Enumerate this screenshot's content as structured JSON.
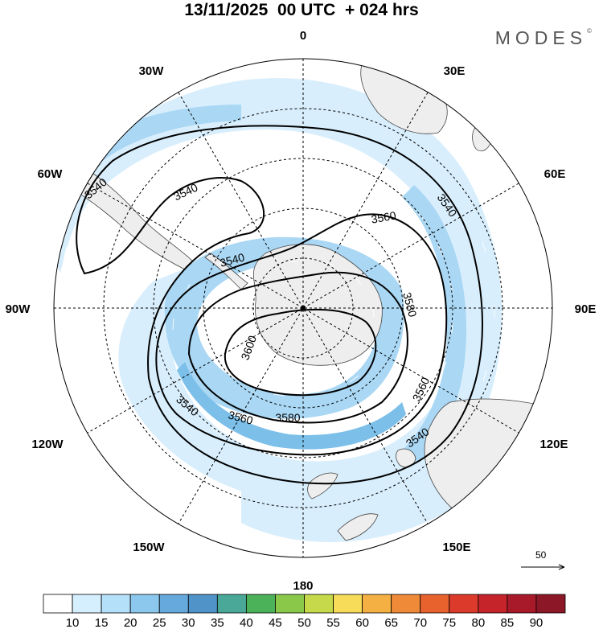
{
  "header": {
    "title": "13/11/2025  00 UTC  + 024 hrs",
    "brand": "MODES",
    "brand_mark": "©"
  },
  "map": {
    "projection": "south-polar-stereographic",
    "longitude_labels": [
      "0",
      "30E",
      "60E",
      "90E",
      "120E",
      "150E",
      "180",
      "150W",
      "120W",
      "90W",
      "60W",
      "30W"
    ],
    "contour_labels": [
      "3540",
      "3540",
      "3540",
      "3540",
      "3540",
      "3560",
      "3560",
      "3560",
      "3580",
      "3580",
      "3600"
    ],
    "wind_reference": {
      "value": "50",
      "arrow": "right-arrow"
    }
  },
  "colorbar": {
    "ticks": [
      "10",
      "15",
      "20",
      "25",
      "30",
      "35",
      "40",
      "45",
      "50",
      "55",
      "60",
      "65",
      "70",
      "75",
      "80",
      "85",
      "90"
    ],
    "colors": [
      "#ffffff",
      "#d6efff",
      "#b5e0f9",
      "#8cc8ee",
      "#66a9dc",
      "#4f93c8",
      "#4aa899",
      "#4cb25a",
      "#8ac84a",
      "#c5d94a",
      "#f6dc59",
      "#f4b043",
      "#ef8a38",
      "#e8622e",
      "#dc3b2c",
      "#c4242a",
      "#a8192a",
      "#8c1727"
    ]
  },
  "colors": {
    "land": "#eeeeee",
    "wind_light": "#d8eefc",
    "wind_mid": "#a9d7f4",
    "wind_strong": "#7cbfe9"
  }
}
